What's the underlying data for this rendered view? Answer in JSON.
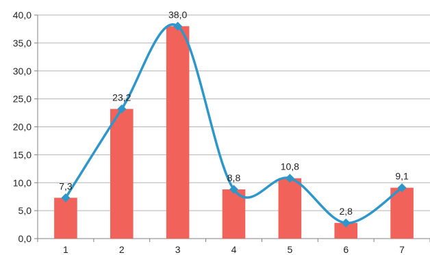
{
  "chart_data": {
    "type": "bar",
    "title": "",
    "xlabel": "",
    "ylabel": "",
    "categories": [
      "1",
      "2",
      "3",
      "4",
      "5",
      "6",
      "7"
    ],
    "ylim": [
      0,
      40
    ],
    "y_ticks": [
      0,
      5,
      10,
      15,
      20,
      25,
      30,
      35,
      40
    ],
    "y_tick_labels": [
      "0,0",
      "5,0",
      "10,0",
      "15,0",
      "20,0",
      "25,0",
      "30,0",
      "35,0",
      "40,0"
    ],
    "grid": "horizontal",
    "legend": "none",
    "series": [
      {
        "render": "bar",
        "values": [
          7.3,
          23.2,
          38.0,
          8.8,
          10.8,
          2.8,
          9.1
        ],
        "color": "#f0625a"
      },
      {
        "render": "smooth-line-with-diamond-markers",
        "values": [
          7.3,
          23.2,
          38.0,
          8.8,
          10.8,
          2.8,
          9.1
        ],
        "color": "#2e96c9",
        "data_labels": [
          "7,3",
          "23,2",
          "38,0",
          "8,8",
          "10,8",
          "2,8",
          "9,1"
        ]
      }
    ]
  }
}
